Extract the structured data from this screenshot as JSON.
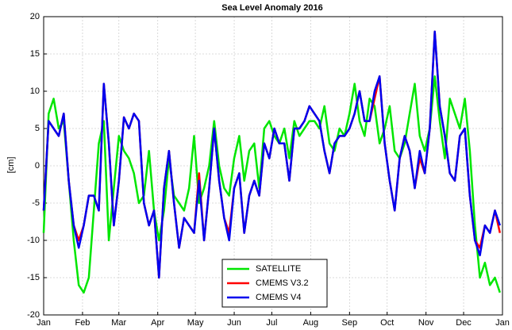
{
  "chart_data": {
    "type": "line",
    "title": "Sea Level Anomaly 2016",
    "ylabel": "[cm]",
    "x": [
      0,
      4,
      8,
      12,
      16,
      20,
      24,
      28,
      32,
      36,
      40,
      44,
      48,
      52,
      56,
      60,
      64,
      68,
      72,
      76,
      80,
      84,
      88,
      92,
      96,
      100,
      104,
      108,
      112,
      116,
      120,
      124,
      128,
      132,
      136,
      140,
      144,
      148,
      152,
      156,
      160,
      164,
      168,
      172,
      176,
      180,
      184,
      188,
      192,
      196,
      200,
      204,
      208,
      212,
      216,
      220,
      224,
      228,
      232,
      236,
      240,
      244,
      248,
      252,
      256,
      260,
      264,
      268,
      272,
      276,
      280,
      284,
      288,
      292,
      296,
      300,
      304,
      308,
      312,
      316,
      320,
      324,
      328,
      332,
      336,
      340,
      344,
      348,
      352,
      356,
      360,
      364
    ],
    "series": [
      {
        "name": "SATELLITE",
        "color": "#00e600",
        "values": [
          -9,
          7,
          9,
          5,
          6,
          -2,
          -10,
          -16,
          -17,
          -15,
          -6,
          3,
          6,
          -10,
          -3,
          4,
          2,
          1,
          -1,
          -5,
          -4,
          2,
          -6,
          -10,
          -6,
          1,
          -4,
          -5,
          -6,
          -3,
          4,
          -5,
          -3,
          0,
          6,
          0,
          -3,
          -4,
          1,
          4,
          -2,
          2,
          3,
          -3,
          5,
          6,
          4,
          3,
          5,
          1,
          6,
          4,
          5,
          6,
          6,
          5,
          8,
          3,
          2,
          5,
          4,
          7,
          11,
          6,
          4,
          9,
          8,
          3,
          5,
          8,
          2,
          1,
          3,
          7,
          11,
          4,
          2,
          5,
          12,
          6,
          1,
          9,
          7,
          5,
          9,
          2,
          -8,
          -15,
          -13,
          -16,
          -15,
          -17
        ]
      },
      {
        "name": "CMEMS V3.2",
        "color": "#ff0000",
        "values": [
          -6,
          6,
          5,
          4,
          7,
          -2,
          -8,
          -10,
          -8,
          -4,
          -4,
          -6,
          11,
          3,
          -8,
          -2,
          6.5,
          5,
          7,
          6,
          -5,
          -8,
          -6,
          -15,
          -3,
          2,
          -5,
          -11,
          -7,
          -8,
          -9,
          -1,
          -10,
          -3,
          5,
          -2,
          -7,
          -9,
          -3,
          -1,
          -9,
          -4,
          -2,
          -4,
          3,
          1,
          5,
          3,
          3,
          -2,
          5,
          5,
          6,
          8,
          7,
          6,
          2,
          -1,
          3,
          4,
          4,
          5,
          7,
          10,
          6,
          6,
          9,
          12,
          3,
          -2,
          -6,
          1,
          4,
          2,
          -3,
          1,
          -1,
          5,
          18,
          8,
          4,
          -1,
          -2,
          4,
          5,
          -4,
          -10,
          -11,
          -8,
          -9,
          -6,
          -9
        ]
      },
      {
        "name": "CMEMS V4",
        "color": "#0000ee",
        "values": [
          -6,
          6,
          5,
          4,
          7,
          -2,
          -8,
          -11,
          -8,
          -4,
          -4,
          -6,
          11,
          3,
          -8,
          -2,
          6.5,
          5,
          7,
          6,
          -5,
          -8,
          -6,
          -15,
          -3,
          2,
          -5,
          -11,
          -7,
          -8,
          -9,
          -2,
          -10,
          -3,
          5,
          -2,
          -7,
          -10,
          -3,
          -1,
          -9,
          -4,
          -2,
          -4,
          3,
          1,
          5,
          3,
          3,
          -2,
          5,
          5,
          6,
          8,
          7,
          6,
          2,
          -1,
          3,
          4,
          4,
          5,
          7,
          10,
          6,
          6,
          10,
          12,
          3,
          -2,
          -6,
          1,
          4,
          2,
          -3,
          2,
          -1,
          5,
          18,
          8,
          4,
          -1,
          -2,
          4,
          5,
          -4,
          -10,
          -12,
          -8,
          -9,
          -6,
          -8
        ]
      }
    ],
    "xlim": [
      0,
      366
    ],
    "xticks": [
      {
        "value": 0,
        "label": "Jan"
      },
      {
        "value": 31,
        "label": "Feb"
      },
      {
        "value": 60,
        "label": "Mar"
      },
      {
        "value": 91,
        "label": "Apr"
      },
      {
        "value": 121,
        "label": "May"
      },
      {
        "value": 152,
        "label": "Jun"
      },
      {
        "value": 182,
        "label": "Jul"
      },
      {
        "value": 213,
        "label": "Aug"
      },
      {
        "value": 244,
        "label": "Sep"
      },
      {
        "value": 274,
        "label": "Oct"
      },
      {
        "value": 305,
        "label": "Nov"
      },
      {
        "value": 335,
        "label": "Dec"
      },
      {
        "value": 366,
        "label": "Jan"
      }
    ],
    "ylim": [
      -20,
      20
    ],
    "yticks": [
      -20,
      -15,
      -10,
      -5,
      0,
      5,
      10,
      15,
      20
    ],
    "grid": true,
    "legend": "lower center"
  }
}
